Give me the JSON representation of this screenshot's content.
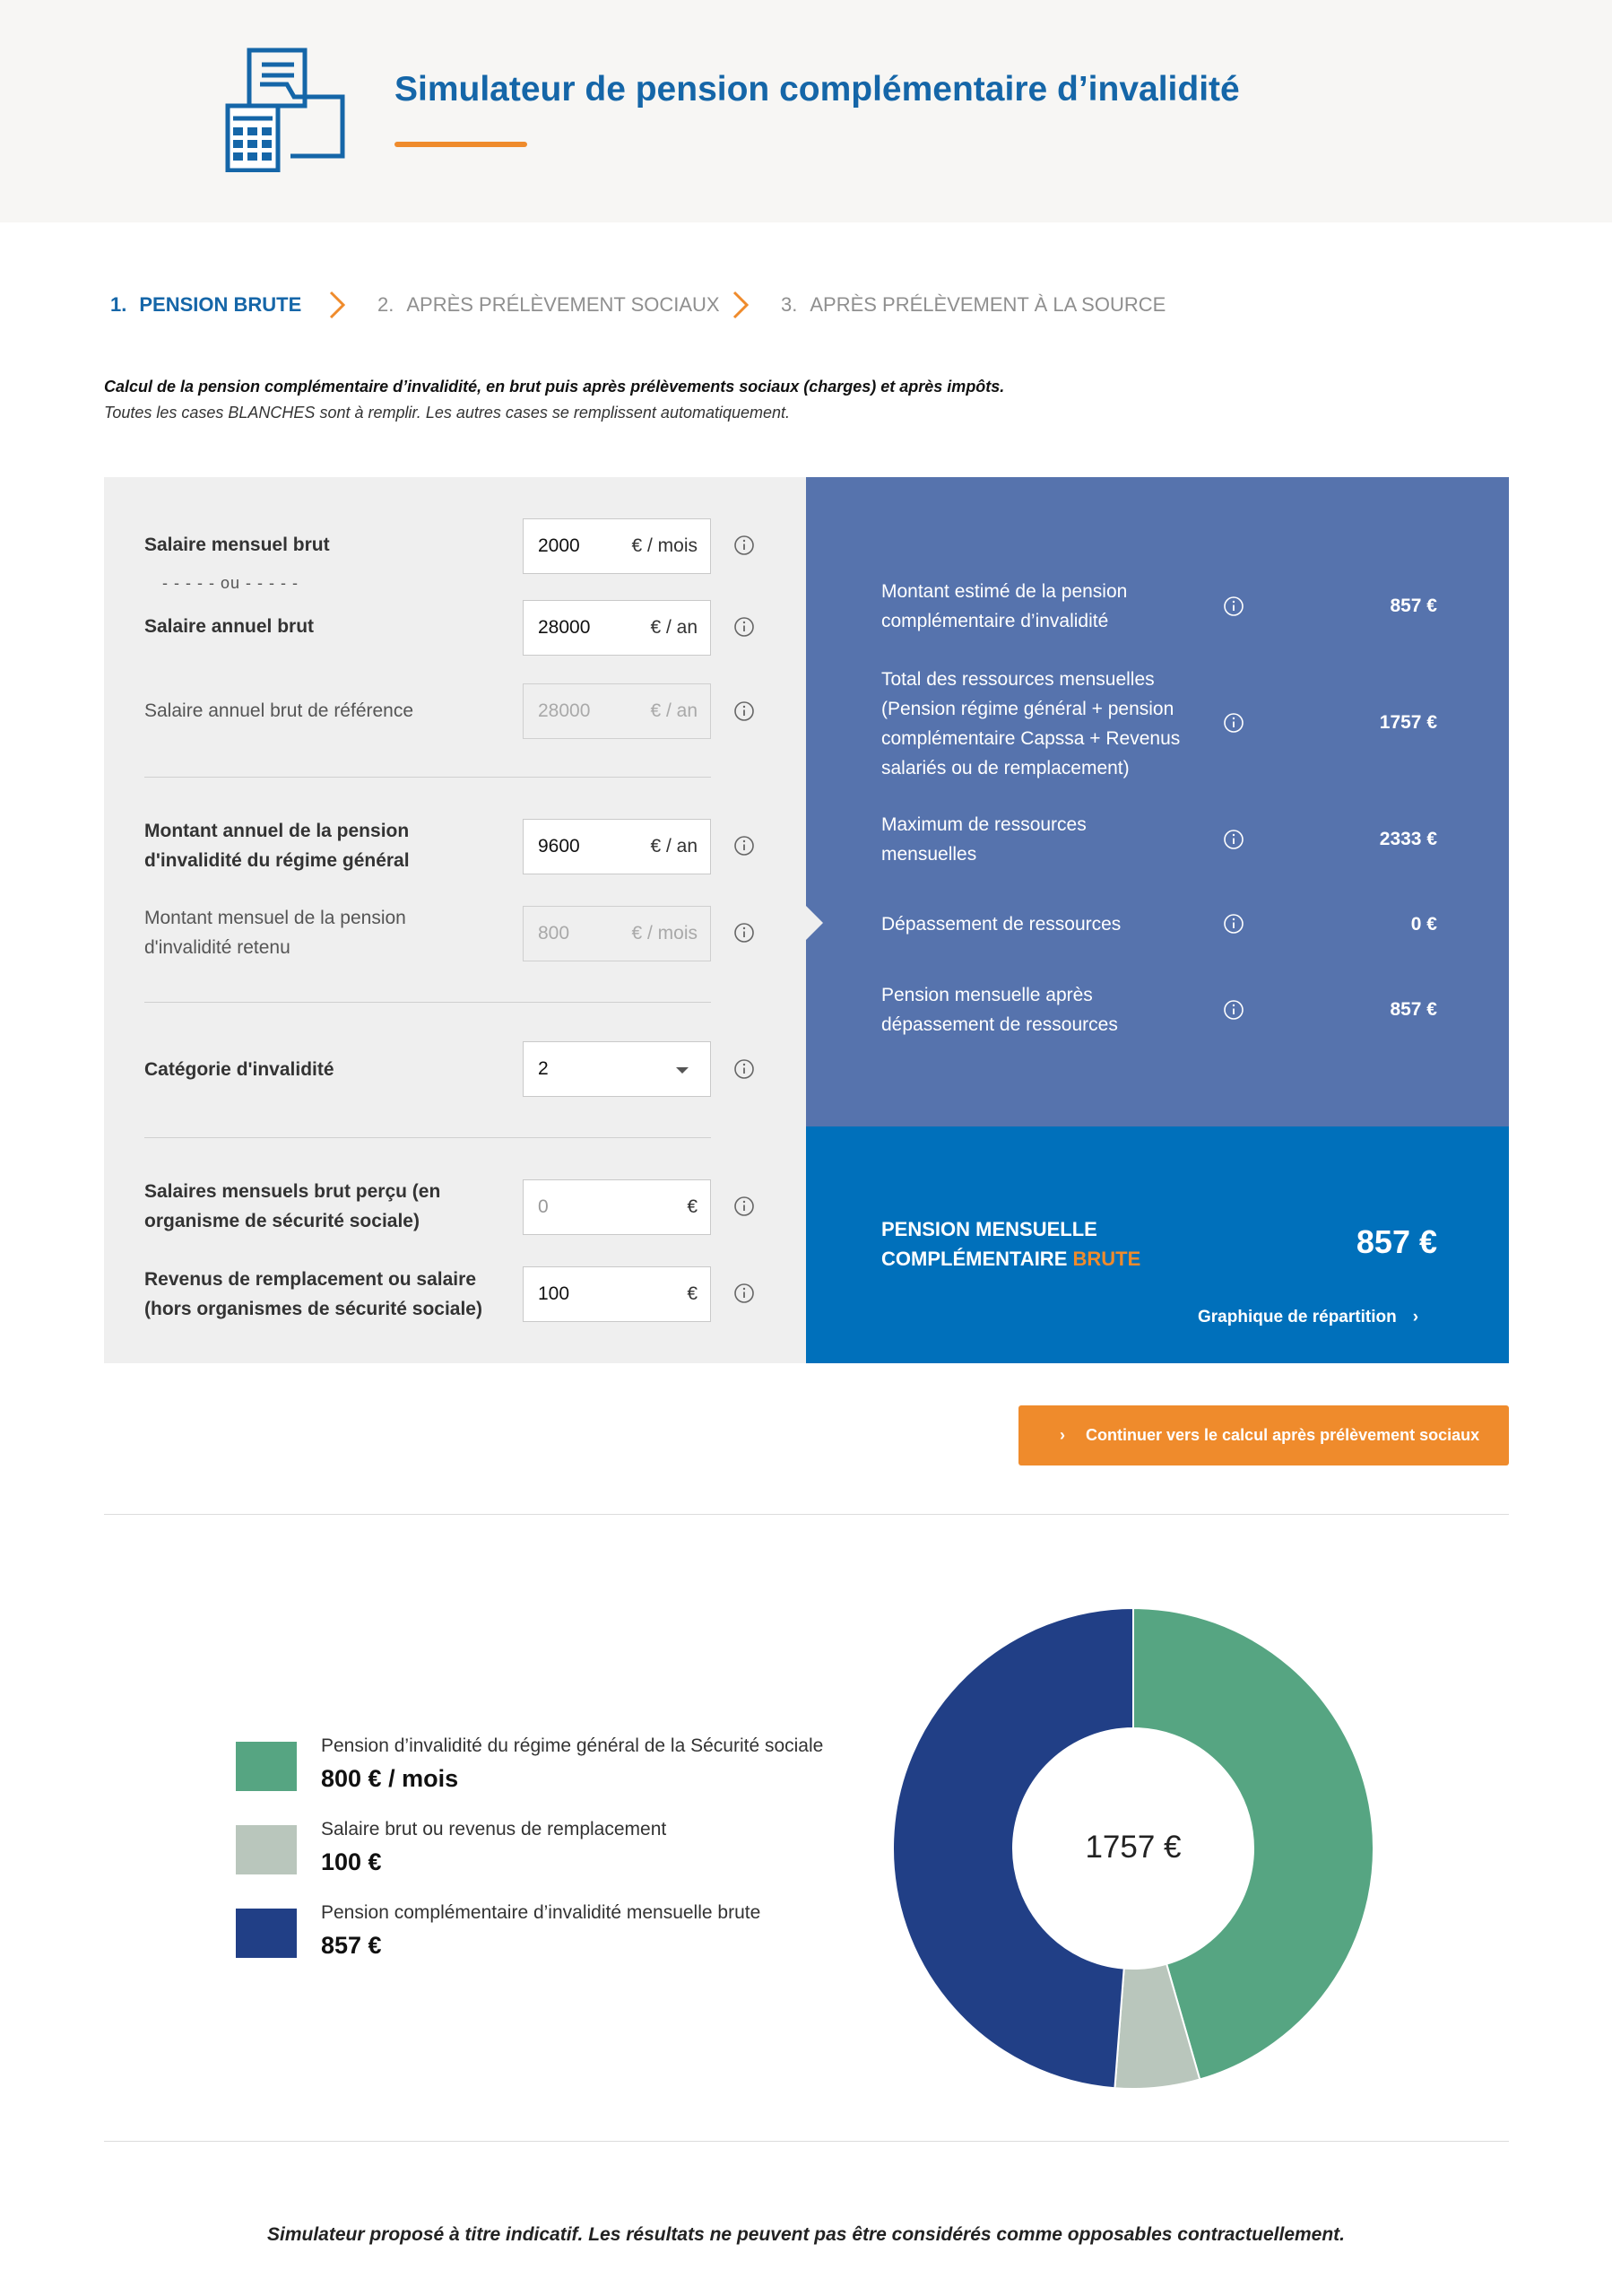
{
  "header": {
    "title": "Simulateur de pension complémentaire d’invalidité",
    "logo_icon": "calculator-documents-icon"
  },
  "steps": [
    {
      "num": "1.",
      "label": "PENSION BRUTE",
      "active": true
    },
    {
      "num": "2.",
      "label": "APRÈS PRÉLÈVEMENT SOCIAUX",
      "active": false
    },
    {
      "num": "3.",
      "label": "APRÈS PRÉLÈVEMENT À LA SOURCE",
      "active": false
    }
  ],
  "intro": {
    "line1": "Calcul de la pension complémentaire d’invalidité, en brut puis après prélèvements sociaux (charges) et après impôts.",
    "line2": "Toutes les cases BLANCHES sont à remplir. Les autres cases se remplissent automatiquement."
  },
  "form": {
    "monthly_salary": {
      "label": "Salaire mensuel brut",
      "value": "2000",
      "unit": "€ / mois"
    },
    "or_separator": "- - - - - ou - - - - -",
    "annual_salary": {
      "label": "Salaire annuel brut",
      "value": "28000",
      "unit": "€ / an"
    },
    "reference_salary": {
      "label": "Salaire annuel brut de référence",
      "value": "28000",
      "unit": "€ / an"
    },
    "general_pension": {
      "label_l1": "Montant annuel de la pension",
      "label_l2": "d'invalidité du régime général",
      "value": "9600",
      "unit": "€ / an"
    },
    "retained_pension": {
      "label_l1": "Montant mensuel de la pension",
      "label_l2": "d'invalidité retenu",
      "value": "800",
      "unit": "€ / mois"
    },
    "category": {
      "label": "Catégorie d'invalidité",
      "value": "2"
    },
    "salaries_ss": {
      "label_l1": "Salaires mensuels brut perçu (en",
      "label_l2": "organisme de sécurité sociale)",
      "placeholder": "0",
      "unit": "€"
    },
    "replacement_income": {
      "label_l1": "Revenus de remplacement ou salaire",
      "label_l2": "(hors organismes de sécurité sociale)",
      "value": "100",
      "unit": "€"
    }
  },
  "results": {
    "estimated": {
      "l1": "Montant estimé de la pension",
      "l2": "complémentaire d’invalidité",
      "value": "857 €"
    },
    "total_resources": {
      "l1": "Total des ressources mensuelles",
      "l2": "(Pension régime général + pension",
      "l3": "complémentaire Capssa + Revenus",
      "l4": "salariés ou de remplacement)",
      "value": "1757 €"
    },
    "max_resources": {
      "l1": "Maximum de ressources",
      "l2": "mensuelles",
      "value": "2333 €"
    },
    "overflow": {
      "l1": "Dépassement de ressources",
      "value": "0 €"
    },
    "after_overflow": {
      "l1": "Pension mensuelle après",
      "l2": "dépassement de ressources",
      "value": "857 €"
    }
  },
  "final": {
    "label_l1": "PENSION MENSUELLE",
    "label_l2": "COMPLÉMENTAIRE",
    "label_accent": "BRUTE",
    "value": "857 €",
    "chart_link": "Graphique de répartition"
  },
  "cta": {
    "label": "Continuer vers le calcul après prélèvement sociaux"
  },
  "chart_data": {
    "type": "pie",
    "center_label": "1757 €",
    "series": [
      {
        "name": "Pension d’invalidité du régime général de la Sécurité sociale",
        "display": "800 € / mois",
        "value": 800,
        "color": "#56a582"
      },
      {
        "name": "Salaire brut ou revenus de remplacement",
        "display": "100 €",
        "value": 100,
        "color": "#b9c6bc"
      },
      {
        "name": "Pension complémentaire d’invalidité mensuelle brute",
        "display": "857 €",
        "value": 857,
        "color": "#213f86"
      }
    ]
  },
  "footer": {
    "note": "Simulateur proposé à titre indicatif. Les résultats ne peuvent pas être considérés comme opposables contractuellement."
  },
  "colors": {
    "primary": "#1566a8",
    "accent": "#ef8b2c",
    "result_bg": "#5673ad",
    "final_bg": "#0070bb"
  }
}
